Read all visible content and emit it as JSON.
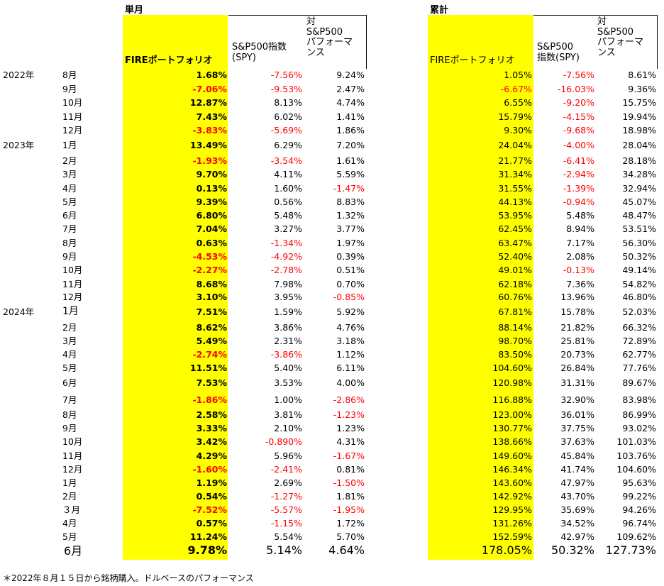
{
  "headers": {
    "monthly_title": "単月",
    "cumulative_title": "累計",
    "col_fire": "FIREポートフォリオ",
    "col_spy_line1": "S&P500指数",
    "col_spy_line2": "(SPY)",
    "col_vs_line1": "対",
    "col_vs_line2": "S&P500",
    "col_vs_line3": "パフォーマ",
    "col_vs_line4": "ンス",
    "cum_spy_line1": "S&P500",
    "cum_spy_line2": "指数(SPY)"
  },
  "rows": [
    {
      "year": "2022年",
      "month": "8月",
      "fire": "1.68%",
      "spy": "-7.56%",
      "vs": "9.24%",
      "cfire": "1.05%",
      "cspy": "-7.56%",
      "cvs": "8.61%"
    },
    {
      "year": "",
      "month": "9月",
      "fire": "-7.06%",
      "spy": "-9.53%",
      "vs": "2.47%",
      "cfire": "-6.67%",
      "cspy": "-16.03%",
      "cvs": "9.36%"
    },
    {
      "year": "",
      "month": "10月",
      "fire": "12.87%",
      "spy": "8.13%",
      "vs": "4.74%",
      "cfire": "6.55%",
      "cspy": "-9.20%",
      "cvs": "15.75%"
    },
    {
      "year": "",
      "month": "11月",
      "fire": "7.43%",
      "spy": "6.02%",
      "vs": "1.41%",
      "cfire": "15.79%",
      "cspy": "-4.15%",
      "cvs": "19.94%"
    },
    {
      "year": "",
      "month": "12月",
      "fire": "-3.83%",
      "spy": "-5.69%",
      "vs": "1.86%",
      "cfire": "9.30%",
      "cspy": "-9.68%",
      "cvs": "18.98%"
    },
    {
      "year": "2023年",
      "month": "1月",
      "fire": "13.49%",
      "spy": "6.29%",
      "vs": "7.20%",
      "cfire": "24.04%",
      "cspy": "-4.00%",
      "cvs": "28.04%"
    },
    {
      "year": "",
      "month": "2月",
      "fire": "-1.93%",
      "spy": "-3.54%",
      "vs": "1.61%",
      "cfire": "21.77%",
      "cspy": "-6.41%",
      "cvs": "28.18%"
    },
    {
      "year": "",
      "month": "3月",
      "fire": "9.70%",
      "spy": "4.11%",
      "vs": "5.59%",
      "cfire": "31.34%",
      "cspy": "-2.94%",
      "cvs": "34.28%"
    },
    {
      "year": "",
      "month": "4月",
      "fire": "0.13%",
      "spy": "1.60%",
      "vs": "-1.47%",
      "cfire": "31.55%",
      "cspy": "-1.39%",
      "cvs": "32.94%"
    },
    {
      "year": "",
      "month": "5月",
      "fire": "9.39%",
      "spy": "0.56%",
      "vs": "8.83%",
      "cfire": "44.13%",
      "cspy": "-0.94%",
      "cvs": "45.07%"
    },
    {
      "year": "",
      "month": "6月",
      "fire": "6.80%",
      "spy": "5.48%",
      "vs": "1.32%",
      "cfire": "53.95%",
      "cspy": "5.48%",
      "cvs": "48.47%"
    },
    {
      "year": "",
      "month": "7月",
      "fire": "7.04%",
      "spy": "3.27%",
      "vs": "3.77%",
      "cfire": "62.45%",
      "cspy": "8.94%",
      "cvs": "53.51%"
    },
    {
      "year": "",
      "month": "8月",
      "fire": "0.63%",
      "spy": "-1.34%",
      "vs": "1.97%",
      "cfire": "63.47%",
      "cspy": "7.17%",
      "cvs": "56.30%"
    },
    {
      "year": "",
      "month": "9月",
      "fire": "-4.53%",
      "spy": "-4.92%",
      "vs": "0.39%",
      "cfire": "52.40%",
      "cspy": "2.08%",
      "cvs": "50.32%"
    },
    {
      "year": "",
      "month": "10月",
      "fire": "-2.27%",
      "spy": "-2.78%",
      "vs": "0.51%",
      "cfire": "49.01%",
      "cspy": "-0.13%",
      "cvs": "49.14%"
    },
    {
      "year": "",
      "month": "11月",
      "fire": "8.68%",
      "spy": "7.98%",
      "vs": "0.70%",
      "cfire": "62.18%",
      "cspy": "7.36%",
      "cvs": "54.82%"
    },
    {
      "year": "",
      "month": "12月",
      "fire": "3.10%",
      "spy": "3.95%",
      "vs": "-0.85%",
      "cfire": "60.76%",
      "cspy": "13.96%",
      "cvs": "46.80%"
    },
    {
      "year": "2024年",
      "month": "1月",
      "fire": "7.51%",
      "spy": "1.59%",
      "vs": "5.92%",
      "cfire": "67.81%",
      "cspy": "15.78%",
      "cvs": "52.03%"
    },
    {
      "year": "",
      "month": "2月",
      "fire": "8.62%",
      "spy": "3.86%",
      "vs": "4.76%",
      "cfire": "88.14%",
      "cspy": "21.82%",
      "cvs": "66.32%"
    },
    {
      "year": "",
      "month": "3月",
      "fire": "5.49%",
      "spy": "2.31%",
      "vs": "3.18%",
      "cfire": "98.70%",
      "cspy": "25.81%",
      "cvs": "72.89%"
    },
    {
      "year": "",
      "month": "4月",
      "fire": "-2.74%",
      "spy": "-3.86%",
      "vs": "1.12%",
      "cfire": "83.50%",
      "cspy": "20.73%",
      "cvs": "62.77%"
    },
    {
      "year": "",
      "month": "5月",
      "fire": "11.51%",
      "spy": "5.40%",
      "vs": "6.11%",
      "cfire": "104.60%",
      "cspy": "26.84%",
      "cvs": "77.76%"
    },
    {
      "year": "",
      "month": "6月",
      "fire": "7.53%",
      "spy": "3.53%",
      "vs": "4.00%",
      "cfire": "120.98%",
      "cspy": "31.31%",
      "cvs": "89.67%"
    },
    {
      "year": "",
      "month": "7月",
      "fire": "-1.86%",
      "spy": "1.00%",
      "vs": "-2.86%",
      "cfire": "116.88%",
      "cspy": "32.90%",
      "cvs": "83.98%"
    },
    {
      "year": "",
      "month": "8月",
      "fire": "2.58%",
      "spy": "3.81%",
      "vs": "-1.23%",
      "cfire": "123.00%",
      "cspy": "36.01%",
      "cvs": "86.99%"
    },
    {
      "year": "",
      "month": "9月",
      "fire": "3.33%",
      "spy": "2.10%",
      "vs": "1.23%",
      "cfire": "130.77%",
      "cspy": "37.75%",
      "cvs": "93.02%"
    },
    {
      "year": "",
      "month": "10月",
      "fire": "3.42%",
      "spy": "-0.890%",
      "vs": "4.31%",
      "cfire": "138.66%",
      "cspy": "37.63%",
      "cvs": "101.03%"
    },
    {
      "year": "",
      "month": "11月",
      "fire": "4.29%",
      "spy": "5.96%",
      "vs": "-1.67%",
      "cfire": "149.60%",
      "cspy": "45.84%",
      "cvs": "103.76%"
    },
    {
      "year": "",
      "month": "12月",
      "fire": "-1.60%",
      "spy": "-2.41%",
      "vs": "0.81%",
      "cfire": "146.34%",
      "cspy": "41.74%",
      "cvs": "104.60%"
    },
    {
      "year": "",
      "month": "1月",
      "fire": "1.19%",
      "spy": "2.69%",
      "vs": "-1.50%",
      "cfire": "143.60%",
      "cspy": "47.97%",
      "cvs": "95.63%"
    },
    {
      "year": "",
      "month": "2月",
      "fire": "0.54%",
      "spy": "-1.27%",
      "vs": "1.81%",
      "cfire": "142.92%",
      "cspy": "43.70%",
      "cvs": "99.22%"
    },
    {
      "year": "",
      "month": "３月",
      "fire": "-7.52%",
      "spy": "-5.57%",
      "vs": "-1.95%",
      "cfire": "129.95%",
      "cspy": "35.69%",
      "cvs": "94.26%"
    },
    {
      "year": "",
      "month": "4月",
      "fire": "0.57%",
      "spy": "-1.15%",
      "vs": "1.72%",
      "cfire": "131.26%",
      "cspy": "34.52%",
      "cvs": "96.74%"
    },
    {
      "year": "",
      "month": "5月",
      "fire": "11.24%",
      "spy": "5.54%",
      "vs": "5.70%",
      "cfire": "152.59%",
      "cspy": "42.97%",
      "cvs": "109.62%"
    },
    {
      "year": "",
      "month": "6月",
      "fire": "9.78%",
      "spy": "5.14%",
      "vs": "4.64%",
      "cfire": "178.05%",
      "cspy": "50.32%",
      "cvs": "127.73%"
    }
  ],
  "footnote": "＊2022年８月１５日から銘柄購入。ドルベースのパフォーマンス",
  "colors": {
    "highlight": "#ffff00",
    "negative": "#ff0000",
    "positive": "#000000"
  }
}
